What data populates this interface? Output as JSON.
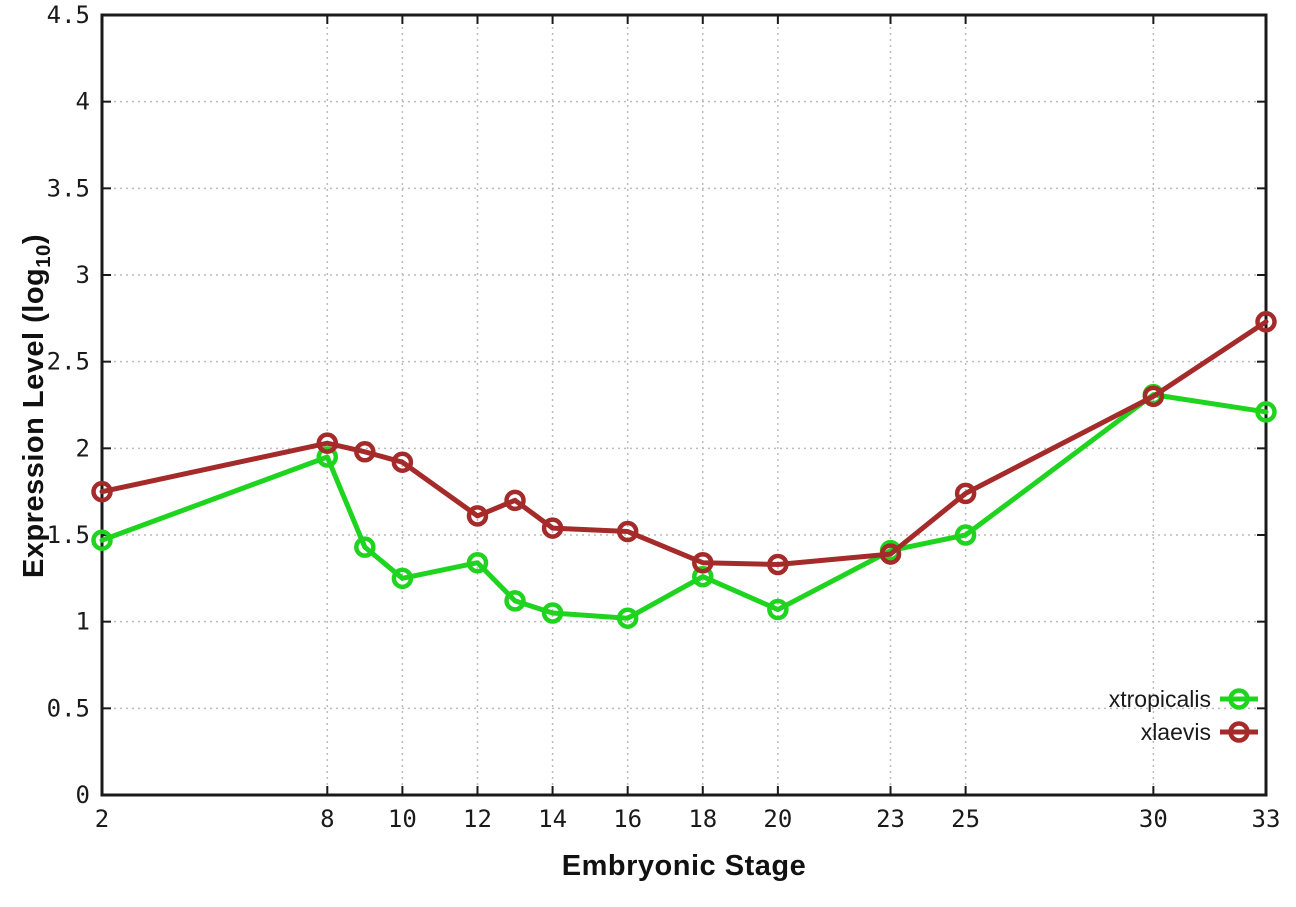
{
  "chart_data": {
    "type": "line",
    "title": "",
    "xlabel": "Embryonic Stage",
    "ylabel_pre": "Expression Level (log",
    "ylabel_sub": "10",
    "ylabel_post": ")",
    "xlim": [
      2,
      33
    ],
    "ylim": [
      0,
      4.5
    ],
    "grid": "dotted",
    "legend_position": "inside-bottom-right",
    "x_ticks": [
      2,
      8,
      10,
      12,
      14,
      16,
      18,
      20,
      23,
      25,
      30,
      33
    ],
    "x_tick_labels": [
      "2",
      "8",
      "10",
      "12",
      "14",
      "16",
      "18",
      "20",
      "23",
      "25",
      "30",
      "33"
    ],
    "y_ticks": [
      0,
      0.5,
      1,
      1.5,
      2,
      2.5,
      3,
      3.5,
      4,
      4.5
    ],
    "y_tick_labels": [
      "0",
      "0.5",
      "1",
      "1.5",
      "2",
      "2.5",
      "3",
      "3.5",
      "4",
      "4.5"
    ],
    "x": [
      2,
      8,
      9,
      10,
      12,
      13,
      14,
      16,
      18,
      20,
      23,
      25,
      30,
      33
    ],
    "series": [
      {
        "name": "xtropicalis",
        "color": "#1ed41e",
        "marker": "open-circle",
        "values": [
          1.47,
          1.95,
          1.43,
          1.25,
          1.34,
          1.12,
          1.05,
          1.02,
          1.26,
          1.07,
          1.41,
          1.5,
          2.31,
          2.21
        ]
      },
      {
        "name": "xlaevis",
        "color": "#a52a2a",
        "marker": "open-circle",
        "values": [
          1.75,
          2.03,
          1.98,
          1.92,
          1.61,
          1.7,
          1.54,
          1.52,
          1.34,
          1.33,
          1.39,
          1.74,
          2.3,
          2.73
        ]
      }
    ],
    "colors": {
      "frame": "#1a1a1a",
      "grid": "#bcbcbc",
      "background": "#ffffff"
    }
  }
}
